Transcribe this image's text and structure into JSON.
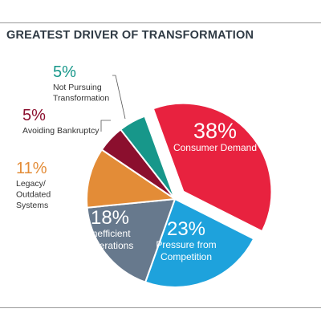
{
  "title": "GREATEST DRIVER OF TRANSFORMATION",
  "chart_data": {
    "type": "pie",
    "title": "GREATEST DRIVER OF TRANSFORMATION",
    "slices": [
      {
        "label": "Consumer Demand",
        "label_lines": [
          "Consumer Demand"
        ],
        "value": 38,
        "value_label": "38%",
        "color": "#e8223f",
        "label_inside": true
      },
      {
        "label": "Pressure from Competition",
        "label_lines": [
          "Pressure from",
          "Competition"
        ],
        "value": 23,
        "value_label": "23%",
        "color": "#1ea2dc",
        "label_inside": true
      },
      {
        "label": "Inefficient Operations",
        "label_lines": [
          "Inefficient",
          "Operations"
        ],
        "value": 18,
        "value_label": "18%",
        "color": "#67798d",
        "label_inside": true
      },
      {
        "label": "Legacy/ Outdated Systems",
        "label_lines": [
          "Legacy/",
          "Outdated",
          "Systems"
        ],
        "value": 11,
        "value_label": "11%",
        "color": "#e38c37",
        "label_inside": false
      },
      {
        "label": "Avoiding Bankruptcy",
        "label_lines": [
          "Avoiding Bankruptcy"
        ],
        "value": 5,
        "value_label": "5%",
        "color": "#8b0f2e",
        "label_inside": false
      },
      {
        "label": "Not Pursuing Transformation",
        "label_lines": [
          "Not Pursuing",
          "Transformation"
        ],
        "value": 5,
        "value_label": "5%",
        "color": "#17978a",
        "label_inside": false
      }
    ],
    "exploded_slice": "Consumer Demand",
    "legend": "none"
  }
}
